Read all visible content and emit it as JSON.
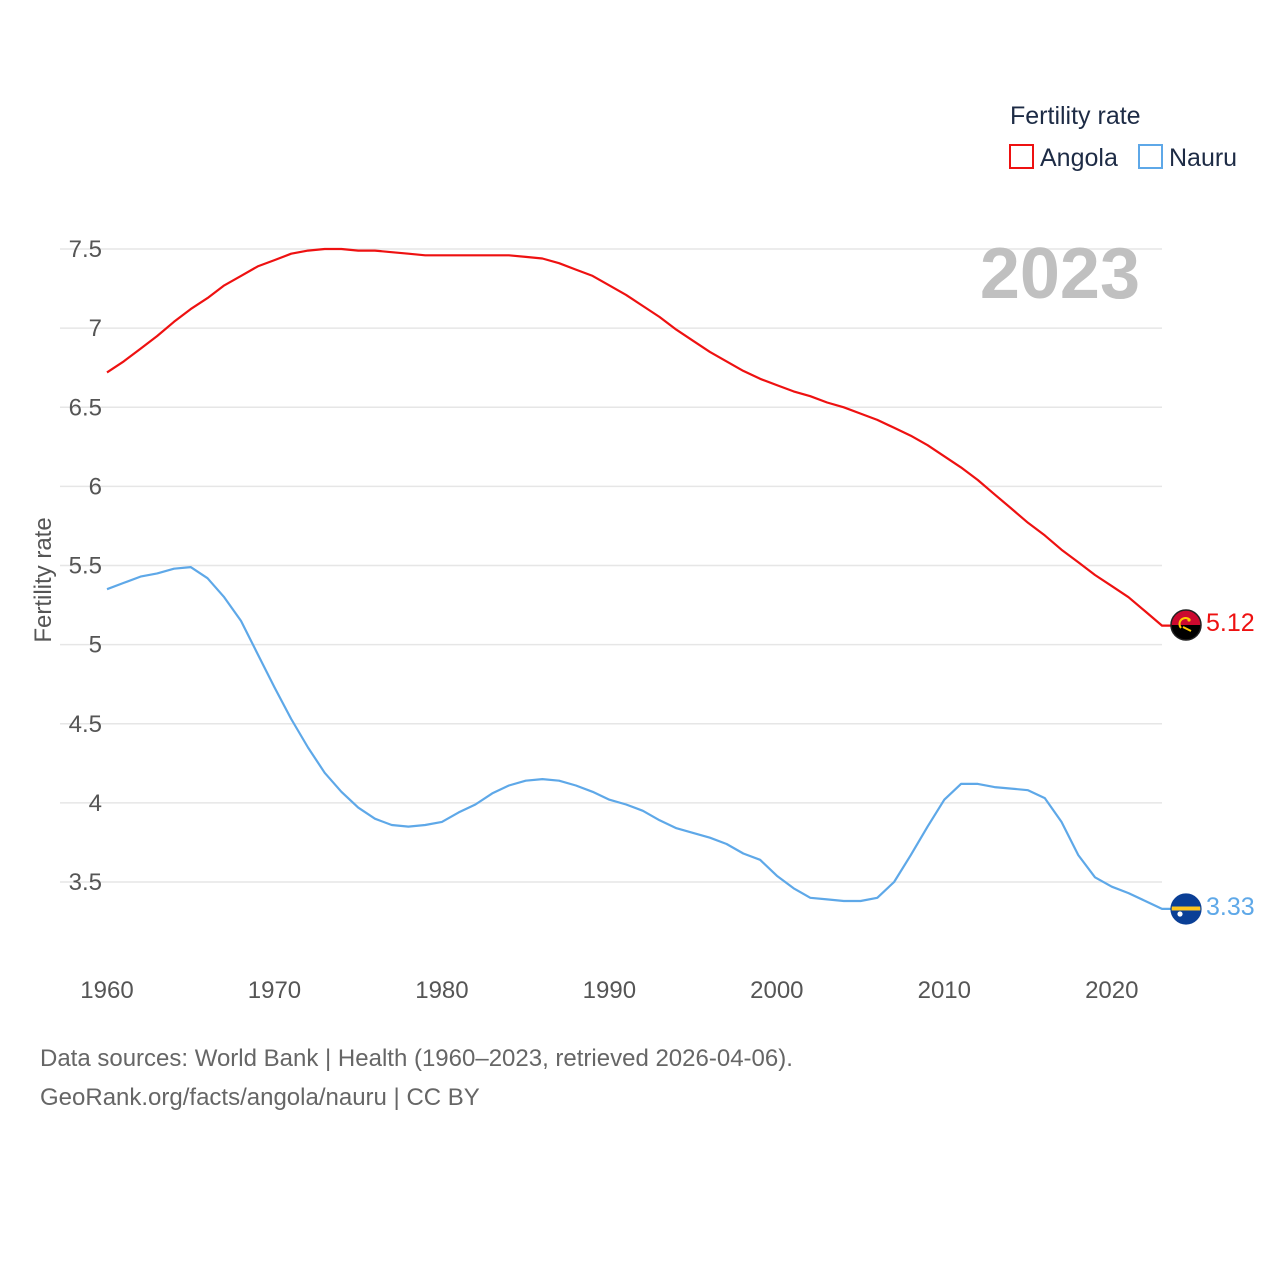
{
  "colors": {
    "angola": "#ee1111",
    "nauru": "#5ea8e8",
    "grid": "#e6e6e6",
    "text": "#555555",
    "legend_text": "#1d2b45",
    "year": "#c0c0c0"
  },
  "icons": {
    "angola_flag": "angola-flag-icon",
    "nauru_flag": "nauru-flag-icon"
  },
  "chart_data": {
    "type": "line",
    "year_label": "2023",
    "ylabel": "Fertility rate",
    "ylim": [
      3.0,
      7.6
    ],
    "xlim": [
      1960,
      2023
    ],
    "y_ticks": [
      3.5,
      4,
      4.5,
      5,
      5.5,
      6,
      6.5,
      7,
      7.5
    ],
    "y_tick_labels": [
      "3.5",
      "4",
      "4.5",
      "5",
      "5.5",
      "6",
      "6.5",
      "7",
      "7.5"
    ],
    "x_ticks": [
      1960,
      1970,
      1980,
      1990,
      2000,
      2010,
      2020
    ],
    "x_tick_labels": [
      "1960",
      "1970",
      "1980",
      "1990",
      "2000",
      "2010",
      "2020"
    ],
    "legend": {
      "title": "Fertility rate",
      "placement": "top-right"
    },
    "x": [
      1960,
      1961,
      1962,
      1963,
      1964,
      1965,
      1966,
      1967,
      1968,
      1969,
      1970,
      1971,
      1972,
      1973,
      1974,
      1975,
      1976,
      1977,
      1978,
      1979,
      1980,
      1981,
      1982,
      1983,
      1984,
      1985,
      1986,
      1987,
      1988,
      1989,
      1990,
      1991,
      1992,
      1993,
      1994,
      1995,
      1996,
      1997,
      1998,
      1999,
      2000,
      2001,
      2002,
      2003,
      2004,
      2005,
      2006,
      2007,
      2008,
      2009,
      2010,
      2011,
      2012,
      2013,
      2014,
      2015,
      2016,
      2017,
      2018,
      2019,
      2020,
      2021,
      2022,
      2023
    ],
    "series": [
      {
        "name": "Angola",
        "color": "#ee1111",
        "end_label": "5.12",
        "values": [
          6.72,
          6.79,
          6.87,
          6.95,
          7.04,
          7.12,
          7.19,
          7.27,
          7.33,
          7.39,
          7.43,
          7.47,
          7.49,
          7.5,
          7.5,
          7.49,
          7.49,
          7.48,
          7.47,
          7.46,
          7.46,
          7.46,
          7.46,
          7.46,
          7.46,
          7.45,
          7.44,
          7.41,
          7.37,
          7.33,
          7.27,
          7.21,
          7.14,
          7.07,
          6.99,
          6.92,
          6.85,
          6.79,
          6.73,
          6.68,
          6.64,
          6.6,
          6.57,
          6.53,
          6.5,
          6.46,
          6.42,
          6.37,
          6.32,
          6.26,
          6.19,
          6.12,
          6.04,
          5.95,
          5.86,
          5.77,
          5.69,
          5.6,
          5.52,
          5.44,
          5.37,
          5.3,
          5.21,
          5.12
        ]
      },
      {
        "name": "Nauru",
        "color": "#5ea8e8",
        "end_label": "3.33",
        "values": [
          5.35,
          5.39,
          5.43,
          5.45,
          5.48,
          5.49,
          5.42,
          5.3,
          5.15,
          4.94,
          4.73,
          4.53,
          4.35,
          4.19,
          4.07,
          3.97,
          3.9,
          3.86,
          3.85,
          3.86,
          3.88,
          3.94,
          3.99,
          4.06,
          4.11,
          4.14,
          4.15,
          4.14,
          4.11,
          4.07,
          4.02,
          3.99,
          3.95,
          3.89,
          3.84,
          3.81,
          3.78,
          3.74,
          3.68,
          3.64,
          3.54,
          3.46,
          3.4,
          3.39,
          3.38,
          3.38,
          3.4,
          3.5,
          3.67,
          3.85,
          4.02,
          4.12,
          4.12,
          4.1,
          4.09,
          4.08,
          4.03,
          3.88,
          3.67,
          3.53,
          3.47,
          3.43,
          3.38,
          3.33
        ]
      }
    ]
  },
  "footer": {
    "line1": "Data sources: World Bank | Health (1960–2023, retrieved 2026-04-06).",
    "line2": "GeoRank.org/facts/angola/nauru | CC BY"
  }
}
